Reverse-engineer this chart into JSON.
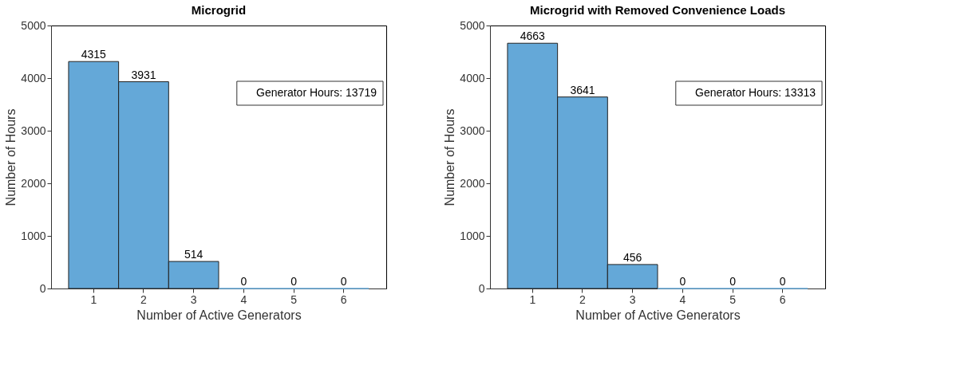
{
  "chart_data": [
    {
      "type": "bar",
      "title": "Microgrid",
      "xlabel": "Number of Active Generators",
      "ylabel": "Number of Hours",
      "categories": [
        "1",
        "2",
        "3",
        "4",
        "5",
        "6"
      ],
      "values": [
        4315,
        3931,
        514,
        0,
        0,
        0
      ],
      "color": "#64a8d8",
      "ylim": [
        0,
        5000
      ],
      "yticks": [
        0,
        1000,
        2000,
        3000,
        4000,
        5000
      ],
      "grid": false,
      "data_labels": true,
      "annotations": [
        "Generator Hours: 13719"
      ]
    },
    {
      "type": "bar",
      "title": "Microgrid with Removed Convenience Loads",
      "xlabel": "Number of Active Generators",
      "ylabel": "Number of Hours",
      "categories": [
        "1",
        "2",
        "3",
        "4",
        "5",
        "6"
      ],
      "values": [
        4663,
        3641,
        456,
        0,
        0,
        0
      ],
      "color": "#64a8d8",
      "ylim": [
        0,
        5000
      ],
      "yticks": [
        0,
        1000,
        2000,
        3000,
        4000,
        5000
      ],
      "grid": false,
      "data_labels": true,
      "annotations": [
        "Generator Hours: 13313"
      ]
    }
  ]
}
